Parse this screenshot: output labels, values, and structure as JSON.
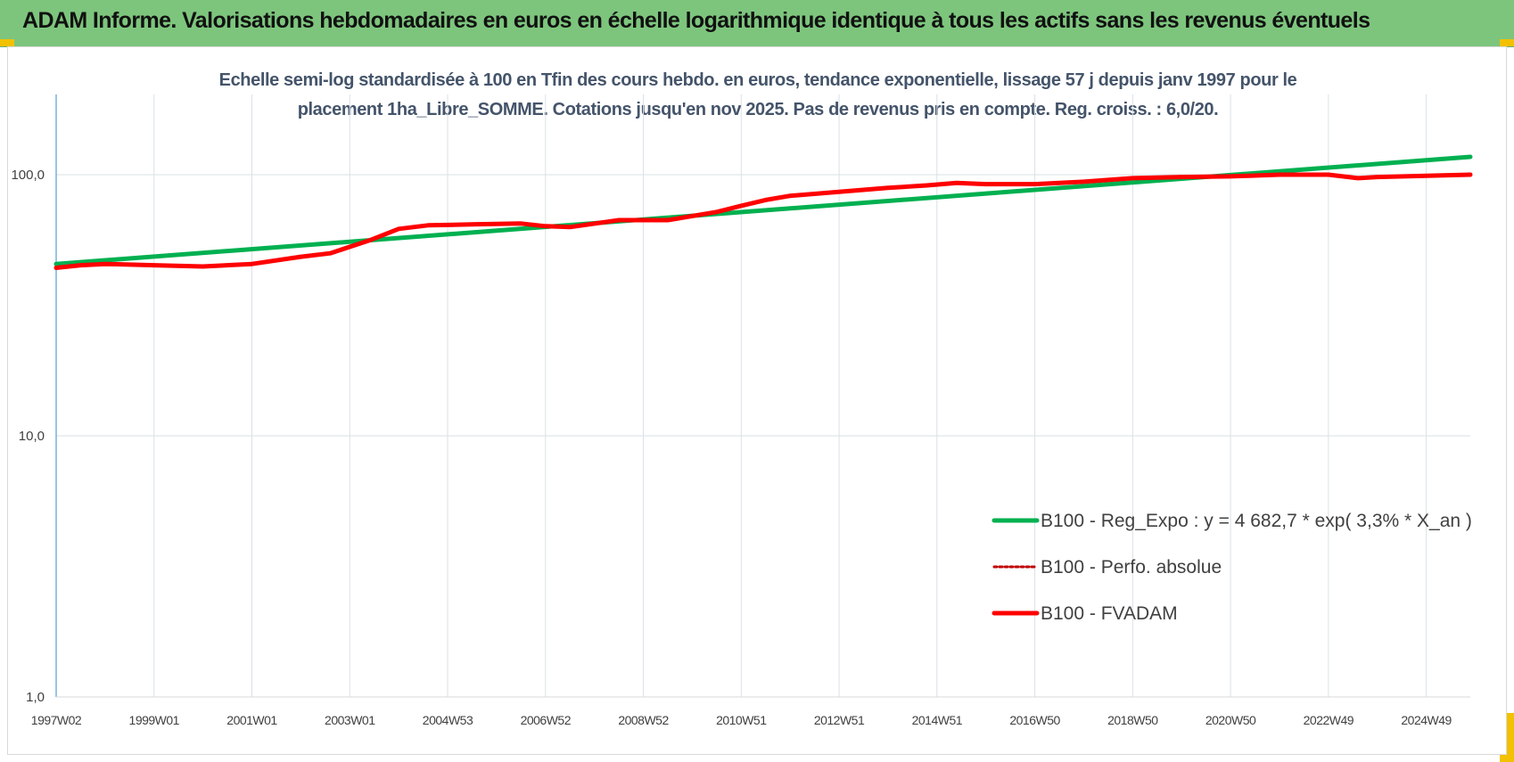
{
  "banner": {
    "title": "ADAM Informe. Valorisations hebdomadaires en euros en échelle logarithmique identique à tous les actifs sans les revenus éventuels"
  },
  "colors": {
    "banner": "#7dc57d",
    "trend": "#00b050",
    "fvadam": "#ff0000",
    "perfo": "#c00000",
    "grid": "#d9e1e6",
    "axis": "#5b9bd5"
  },
  "chart_data": {
    "type": "line",
    "title_lines": [
      "Echelle semi-log standardisée à 100 en Tfin des cours hebdo. en euros, tendance exponentielle, lissage 57 j depuis janv 1997 pour le",
      "placement 1ha_Libre_SOMME. Cotations jusqu'en nov 2025. Pas de revenus pris en compte. Reg. croiss. : 6,0/20."
    ],
    "y_scale": "log",
    "ylim": [
      1,
      200
    ],
    "y_ticks": [
      "1,0",
      "10,0",
      "100,0"
    ],
    "y_tick_values": [
      1,
      10,
      100
    ],
    "x_range": [
      1997.0,
      2025.9
    ],
    "x_ticks": [
      "1997W02",
      "1999W01",
      "2001W01",
      "2003W01",
      "2004W53",
      "2006W52",
      "2008W52",
      "2010W51",
      "2012W51",
      "2014W51",
      "2016W50",
      "2018W50",
      "2020W50",
      "2022W49",
      "2024W49"
    ],
    "x_tick_values": [
      1997.0,
      1999.0,
      2001.0,
      2003.0,
      2005.0,
      2007.0,
      2009.0,
      2011.0,
      2013.0,
      2015.0,
      2017.0,
      2019.0,
      2021.0,
      2023.0,
      2025.0
    ],
    "grid": true,
    "legend_position": "bottom-right",
    "series": [
      {
        "name": "B100 - Reg_Expo : y = 4 682,7 * exp( 3,3% *  X_an )",
        "style": "solid-thick",
        "color": "#00b050",
        "x": [
          1997.0,
          2025.9
        ],
        "y": [
          45.5,
          117
        ]
      },
      {
        "name": "B100 - Perfo. absolue",
        "style": "dotted",
        "color": "#c00000",
        "x": [],
        "y": []
      },
      {
        "name": "B100 - FVADAM",
        "style": "solid-thick",
        "color": "#ff0000",
        "x": [
          1997.0,
          1997.5,
          1998.0,
          1999.0,
          2000.0,
          2001.0,
          2002.0,
          2002.6,
          2003.4,
          2004.0,
          2004.6,
          2005.5,
          2006.5,
          2007.0,
          2007.5,
          2008.5,
          2009.5,
          2010.5,
          2011.0,
          2011.5,
          2012.0,
          2013.0,
          2014.0,
          2014.8,
          2015.4,
          2016.0,
          2017.0,
          2018.0,
          2019.0,
          2020.0,
          2021.0,
          2022.0,
          2023.0,
          2023.6,
          2024.0,
          2025.0,
          2025.9
        ],
        "y": [
          44,
          45,
          45.5,
          45,
          44.5,
          45.5,
          48.5,
          50,
          56,
          62,
          64,
          64.5,
          65,
          63.5,
          63,
          67,
          67,
          72,
          76,
          80,
          83,
          86,
          89,
          91,
          93,
          92,
          92,
          94,
          97,
          98,
          98.5,
          100,
          100,
          97,
          98,
          99,
          100
        ]
      }
    ]
  }
}
